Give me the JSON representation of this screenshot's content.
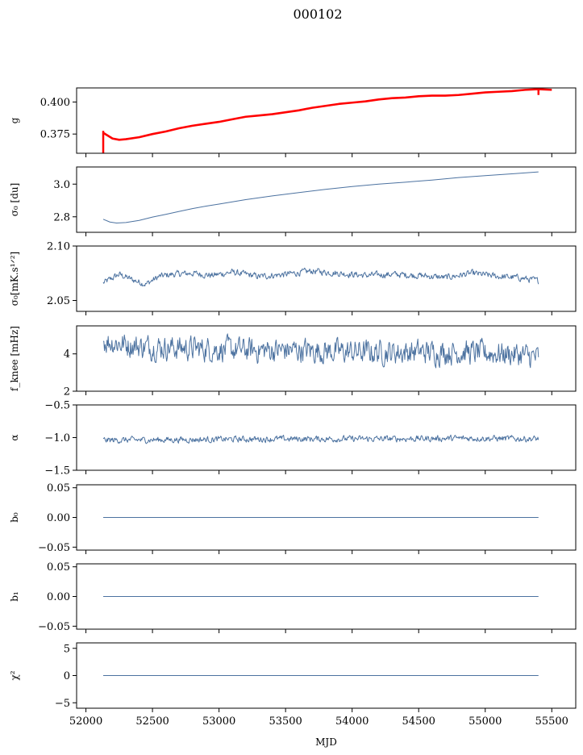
{
  "title": "000102",
  "chart_data": {
    "type": "line",
    "x_axis": {
      "label": "MJD",
      "lim": [
        51930,
        55680
      ],
      "ticks": [
        52000,
        52500,
        53000,
        53500,
        54000,
        54500,
        55000,
        55500
      ]
    },
    "colors": {
      "main": "#4c72a0",
      "overlay": "#ff0000"
    },
    "panels": [
      {
        "ylabel": "g",
        "ylim": [
          0.36,
          0.411
        ],
        "yticks": [
          {
            "v": 0.375,
            "label": "0.375"
          },
          {
            "v": 0.4,
            "label": "0.400"
          }
        ],
        "series": [
          {
            "name": "",
            "color": "#4c72a0",
            "width": 1,
            "x": [
              52130,
              52200,
              52250,
              52300,
              52400,
              52500,
              52600,
              52700,
              52800,
              52900,
              53000,
              53100,
              53200,
              53300,
              53400,
              53500,
              53600,
              53700,
              53800,
              53900,
              54000,
              54100,
              54200,
              54300,
              54400,
              54500,
              54600,
              54700,
              54800,
              54900,
              55000,
              55100,
              55200,
              55300,
              55400
            ],
            "y": [
              0.376,
              0.3715,
              0.3705,
              0.371,
              0.3725,
              0.375,
              0.377,
              0.3795,
              0.3815,
              0.383,
              0.3845,
              0.3865,
              0.3885,
              0.3895,
              0.3905,
              0.392,
              0.3935,
              0.3955,
              0.397,
              0.3985,
              0.3995,
              0.4005,
              0.402,
              0.403,
              0.4035,
              0.4045,
              0.405,
              0.405,
              0.4055,
              0.4065,
              0.4075,
              0.408,
              0.4085,
              0.4095,
              0.41
            ]
          },
          {
            "name": "",
            "color": "#ff0000",
            "width": 2.6,
            "x": [
              52130,
              52200,
              52250,
              52300,
              52400,
              52500,
              52600,
              52700,
              52800,
              52900,
              53000,
              53100,
              53200,
              53300,
              53400,
              53500,
              53600,
              53700,
              53800,
              53900,
              54000,
              54100,
              54200,
              54300,
              54400,
              54500,
              54600,
              54700,
              54800,
              54900,
              55000,
              55100,
              55200,
              55300,
              55400,
              55500
            ],
            "y": [
              0.376,
              0.3715,
              0.3705,
              0.371,
              0.3725,
              0.375,
              0.377,
              0.3795,
              0.3815,
              0.383,
              0.3845,
              0.3865,
              0.3885,
              0.3895,
              0.3905,
              0.392,
              0.3935,
              0.3955,
              0.397,
              0.3985,
              0.3995,
              0.4005,
              0.402,
              0.403,
              0.4035,
              0.4045,
              0.405,
              0.405,
              0.4055,
              0.4065,
              0.4075,
              0.408,
              0.4085,
              0.4095,
              0.41,
              0.4095
            ]
          }
        ],
        "spikes": [
          {
            "x": 52130,
            "y0": 0.36,
            "y1": 0.3775,
            "color": "#ff0000"
          },
          {
            "x": 55400,
            "y0": 0.4055,
            "y1": 0.4105,
            "color": "#ff0000"
          }
        ]
      },
      {
        "ylabel": "σ₀ [du]",
        "ylim": [
          2.705,
          3.105
        ],
        "yticks": [
          {
            "v": 2.8,
            "label": "2.8"
          },
          {
            "v": 3.0,
            "label": "3.0"
          }
        ],
        "series": [
          {
            "name": "",
            "color": "#4c72a0",
            "width": 1,
            "x": [
              52130,
              52180,
              52230,
              52300,
              52400,
              52500,
              52600,
              52700,
              52800,
              52900,
              53000,
              53200,
              53400,
              53600,
              53800,
              54000,
              54200,
              54400,
              54600,
              54800,
              55000,
              55200,
              55400
            ],
            "y": [
              2.785,
              2.768,
              2.762,
              2.765,
              2.778,
              2.798,
              2.815,
              2.833,
              2.85,
              2.865,
              2.878,
              2.905,
              2.928,
              2.948,
              2.968,
              2.985,
              3.0,
              3.012,
              3.025,
              3.04,
              3.052,
              3.063,
              3.075
            ]
          }
        ]
      },
      {
        "ylabel": "σ₀[mK.s¹ᐟ²]",
        "ylim": [
          2.04,
          2.1
        ],
        "yticks": [
          {
            "v": 2.05,
            "label": "2.05"
          },
          {
            "v": 2.1,
            "label": "2.10"
          }
        ],
        "series": [
          {
            "name": "",
            "color": "#4c72a0",
            "width": 1,
            "noise": 0.0025,
            "x": [
              52130,
              52250,
              52350,
              52450,
              52550,
              52650,
              52800,
              52950,
              53100,
              53300,
              53500,
              53700,
              53900,
              54100,
              54300,
              54500,
              54700,
              54900,
              55100,
              55250,
              55400
            ],
            "y": [
              2.066,
              2.074,
              2.069,
              2.065,
              2.072,
              2.074,
              2.075,
              2.073,
              2.076,
              2.072,
              2.074,
              2.077,
              2.075,
              2.073,
              2.074,
              2.073,
              2.071,
              2.075,
              2.072,
              2.071,
              2.068
            ]
          }
        ]
      },
      {
        "ylabel": "f_knee [mHz]",
        "ylim": [
          2,
          5.5
        ],
        "yticks": [
          {
            "v": 2,
            "label": "2"
          },
          {
            "v": 4,
            "label": "4"
          }
        ],
        "series": [
          {
            "name": "",
            "color": "#4c72a0",
            "width": 1,
            "noise": 0.55,
            "x": [
              52130,
              52400,
              52800,
              53200,
              53600,
              54000,
              54400,
              54800,
              55200,
              55400
            ],
            "y": [
              4.7,
              4.4,
              4.3,
              4.2,
              4.2,
              4.1,
              4.1,
              4.1,
              4.0,
              3.8
            ]
          }
        ]
      },
      {
        "ylabel": "α",
        "ylim": [
          -1.5,
          -0.5
        ],
        "yticks": [
          {
            "v": -1.5,
            "label": "−1.5"
          },
          {
            "v": -1.0,
            "label": "−1.0"
          },
          {
            "v": -0.5,
            "label": "−0.5"
          }
        ],
        "series": [
          {
            "name": "",
            "color": "#4c72a0",
            "width": 1,
            "noise": 0.04,
            "x": [
              52130,
              52800,
              53500,
              54200,
              54900,
              55400
            ],
            "y": [
              -1.04,
              -1.03,
              -1.02,
              -1.02,
              -1.01,
              -1.02
            ]
          }
        ]
      },
      {
        "ylabel": "b₀",
        "ylim": [
          -0.055,
          0.055
        ],
        "yticks": [
          {
            "v": -0.05,
            "label": "−0.05"
          },
          {
            "v": 0.0,
            "label": "0.00"
          },
          {
            "v": 0.05,
            "label": "0.05"
          }
        ],
        "series": [
          {
            "name": "",
            "color": "#4c72a0",
            "width": 1,
            "x": [
              52130,
              55400
            ],
            "y": [
              0,
              0
            ]
          }
        ]
      },
      {
        "ylabel": "b₁",
        "ylim": [
          -0.055,
          0.055
        ],
        "yticks": [
          {
            "v": -0.05,
            "label": "−0.05"
          },
          {
            "v": 0.0,
            "label": "0.00"
          },
          {
            "v": 0.05,
            "label": "0.05"
          }
        ],
        "series": [
          {
            "name": "",
            "color": "#4c72a0",
            "width": 1,
            "x": [
              52130,
              55400
            ],
            "y": [
              0,
              0
            ]
          }
        ]
      },
      {
        "ylabel": "χ²",
        "ylim": [
          -6,
          6
        ],
        "yticks": [
          {
            "v": -5,
            "label": "−5"
          },
          {
            "v": 0,
            "label": "0"
          },
          {
            "v": 5,
            "label": "5"
          }
        ],
        "series": [
          {
            "name": "",
            "color": "#4c72a0",
            "width": 1,
            "x": [
              52130,
              55400
            ],
            "y": [
              0,
              0
            ]
          }
        ]
      }
    ]
  }
}
